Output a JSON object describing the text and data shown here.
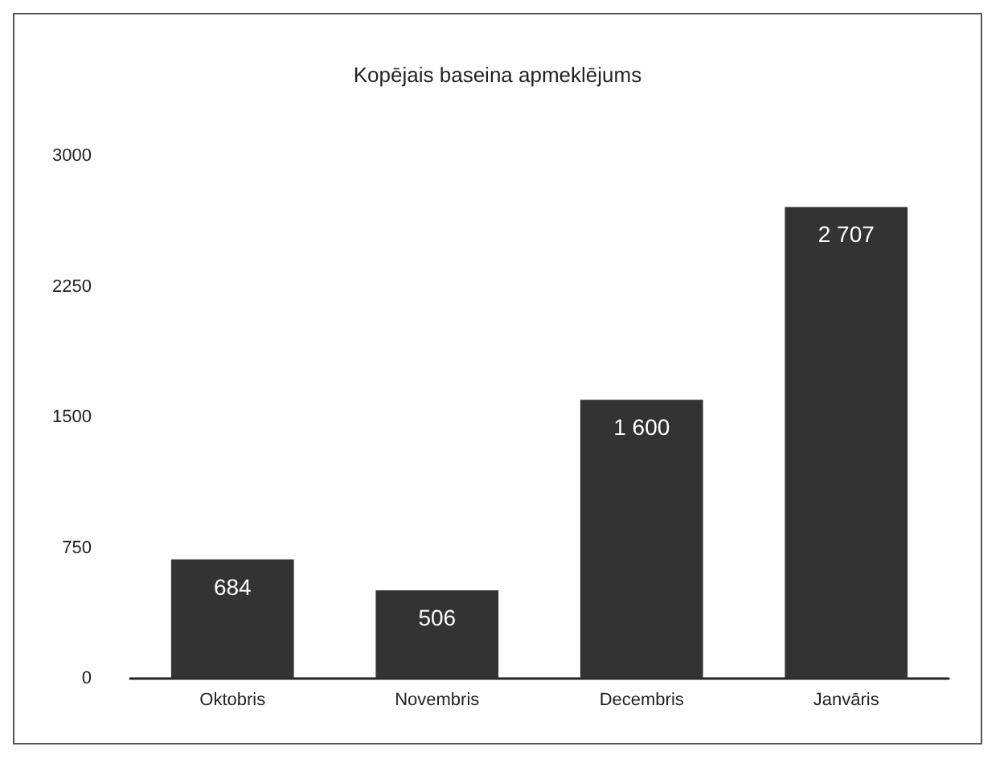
{
  "chart_data": {
    "type": "bar",
    "title": "Kopējais baseina apmeklējums",
    "categories": [
      "Oktobris",
      "Novembris",
      "Decembris",
      "Janvāris"
    ],
    "values": [
      684,
      506,
      1600,
      2707
    ],
    "value_labels": [
      "684",
      "506",
      "1 600",
      "2 707"
    ],
    "color": "#333333",
    "ylim": [
      0,
      3000
    ],
    "yticks": [
      0,
      750,
      1500,
      2250,
      3000
    ],
    "grid": false
  }
}
